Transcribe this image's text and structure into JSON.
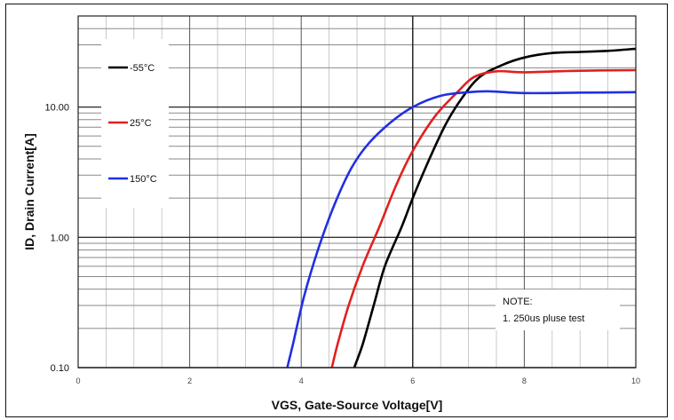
{
  "chart_data": {
    "type": "line",
    "xlabel": "VGS, Gate-Source Voltage[V]",
    "ylabel": "ID, Drain Current[A]",
    "xlim": [
      0,
      10
    ],
    "ylim": [
      0.1,
      50
    ],
    "yscale": "log",
    "grid": true,
    "x_ticks": [
      "0",
      "2",
      "4",
      "6",
      "8",
      "10"
    ],
    "y_ticks": [
      "0.10",
      "1.00",
      "10.00"
    ],
    "legend_position": "top-left",
    "series": [
      {
        "name": "-55°C",
        "color": "#000000",
        "points": [
          [
            4.95,
            0.1
          ],
          [
            5.1,
            0.15
          ],
          [
            5.3,
            0.3
          ],
          [
            5.5,
            0.6
          ],
          [
            5.8,
            1.2
          ],
          [
            6.0,
            2.0
          ],
          [
            6.3,
            4.0
          ],
          [
            6.6,
            7.5
          ],
          [
            6.9,
            12.0
          ],
          [
            7.2,
            17.0
          ],
          [
            7.6,
            21.0
          ],
          [
            8.0,
            24.0
          ],
          [
            8.5,
            26.0
          ],
          [
            9.0,
            26.5
          ],
          [
            9.5,
            27.0
          ],
          [
            10.0,
            28.0
          ]
        ]
      },
      {
        "name": "25°C",
        "color": "#e02020",
        "points": [
          [
            4.55,
            0.1
          ],
          [
            4.65,
            0.15
          ],
          [
            4.85,
            0.3
          ],
          [
            5.1,
            0.6
          ],
          [
            5.4,
            1.2
          ],
          [
            5.7,
            2.5
          ],
          [
            6.0,
            4.6
          ],
          [
            6.4,
            8.5
          ],
          [
            6.8,
            13.0
          ],
          [
            7.1,
            17.0
          ],
          [
            7.5,
            18.8
          ],
          [
            8.0,
            18.5
          ],
          [
            9.0,
            19.0
          ],
          [
            10.0,
            19.2
          ]
        ]
      },
      {
        "name": "150°C",
        "color": "#2030e0",
        "points": [
          [
            3.75,
            0.1
          ],
          [
            3.85,
            0.15
          ],
          [
            4.05,
            0.35
          ],
          [
            4.3,
            0.8
          ],
          [
            4.6,
            1.8
          ],
          [
            4.9,
            3.4
          ],
          [
            5.2,
            5.2
          ],
          [
            5.6,
            7.6
          ],
          [
            6.0,
            10.0
          ],
          [
            6.5,
            12.2
          ],
          [
            7.0,
            13.0
          ],
          [
            7.4,
            13.2
          ],
          [
            8.0,
            12.8
          ],
          [
            9.0,
            12.9
          ],
          [
            10.0,
            13.0
          ]
        ]
      }
    ],
    "note": [
      "NOTE:",
      "1. 250us pluse test"
    ]
  }
}
